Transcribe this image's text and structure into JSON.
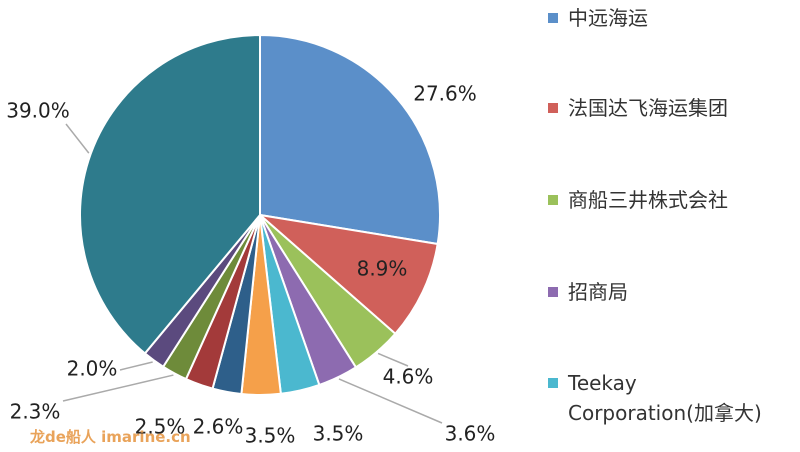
{
  "chart_data": {
    "type": "pie",
    "categories": [
      "中远海运",
      "法国达飞海运集团",
      "商船三井株式会社",
      "招商局",
      "Teekay Corporation(加拿大)",
      null,
      null,
      null,
      null,
      null,
      null
    ],
    "values": [
      27.6,
      8.9,
      4.6,
      3.6,
      3.5,
      3.5,
      2.6,
      2.5,
      2.3,
      2.0,
      39.0
    ],
    "value_labels": [
      "27.6%",
      "8.9%",
      "4.6%",
      "3.6%",
      "3.5%",
      "3.5%",
      "2.6%",
      "2.5%",
      "2.3%",
      "2.0%",
      "39.0%"
    ],
    "colors": [
      "#5b8fc9",
      "#d0605a",
      "#9bc15b",
      "#8d6bb0",
      "#4bb8cf",
      "#f5a04a",
      "#2e5f8a",
      "#a33a3a",
      "#6e8b3a",
      "#5b4a7e",
      "#2e7b8c"
    ],
    "legend": "right"
  },
  "watermark": "龙de船人 imarine.cn"
}
